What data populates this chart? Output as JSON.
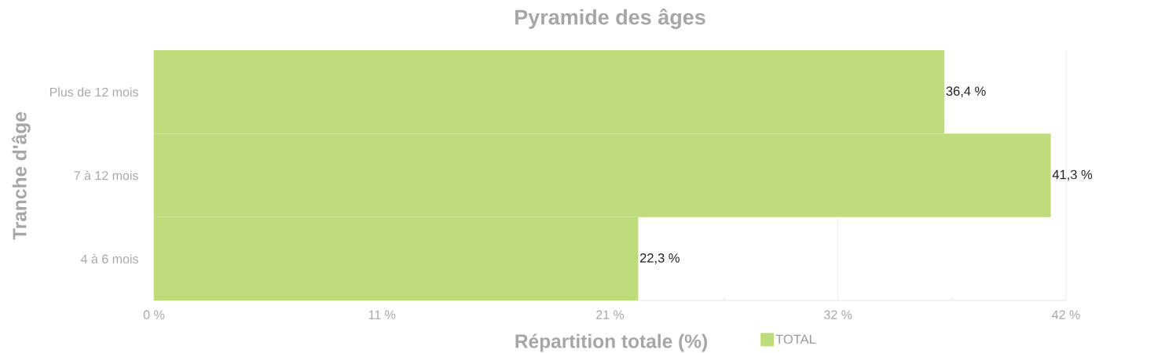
{
  "chart_data": {
    "type": "bar",
    "orientation": "horizontal",
    "title": "Pyramide des âges",
    "xlabel": "Répartition totale (%)",
    "ylabel": "Tranche d'âge",
    "categories": [
      "Plus de 12 mois",
      "7 à 12 mois",
      "4 à 6 mois"
    ],
    "series": [
      {
        "name": "TOTAL",
        "color": "#bfdc7c",
        "values": [
          36.4,
          41.3,
          22.3
        ],
        "value_labels": [
          "36,4 %",
          "41,3 %",
          "22,3 %"
        ]
      }
    ],
    "xlim": [
      0,
      42
    ],
    "xticks": [
      {
        "value": 0,
        "label": "0 %"
      },
      {
        "value": 10.5,
        "label": "11 %"
      },
      {
        "value": 21,
        "label": "21 %"
      },
      {
        "value": 31.5,
        "label": "32 %"
      },
      {
        "value": 42,
        "label": "42 %"
      }
    ],
    "grid": "x",
    "legend": "bottom"
  }
}
